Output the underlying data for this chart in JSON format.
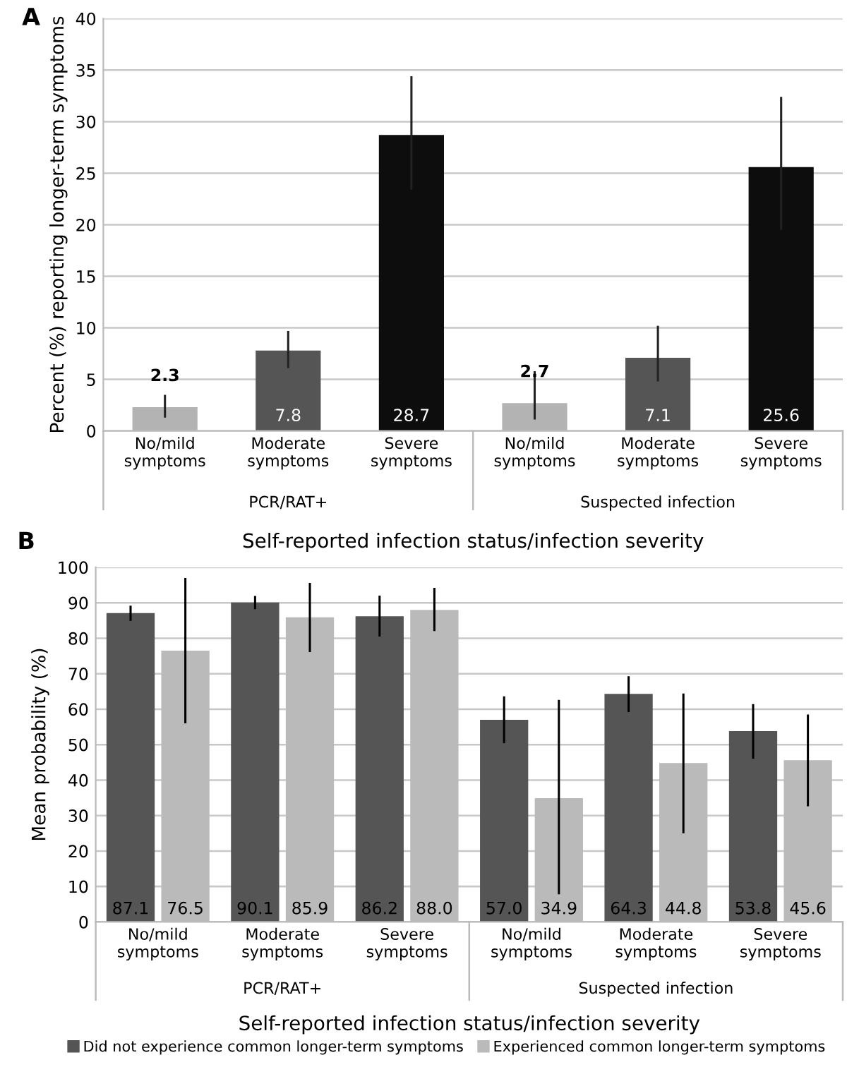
{
  "chart_data": [
    {
      "type": "bar",
      "xlabel": "Self-reported infection status/infection severity",
      "ylabel": "Percent (%) reporting longer-term symptoms",
      "categories": [
        "No/mild symptoms",
        "Moderate symptoms",
        "Severe symptoms",
        "No/mild symptoms",
        "Moderate symptoms",
        "Severe symptoms"
      ],
      "values": [
        2.3,
        7.8,
        28.7,
        2.7,
        7.1,
        25.6
      ],
      "colors": [
        "#b3b3b3",
        "#555555",
        "#0d0d0d",
        "#b3b3b3",
        "#555555",
        "#0d0d0d"
      ],
      "errors": [
        [
          1.3,
          3.5
        ],
        [
          6.1,
          9.7
        ],
        [
          23.4,
          34.4
        ],
        [
          1.1,
          5.8
        ],
        [
          4.8,
          10.2
        ],
        [
          19.5,
          32.4
        ]
      ],
      "data_labels": true,
      "ylim": [
        0,
        40
      ],
      "yticks": [
        0,
        5,
        10,
        15,
        20,
        25,
        30,
        35,
        40
      ],
      "grid": "y",
      "annotations": [
        "A",
        "PCR/RAT+",
        "Suspected infection"
      ]
    },
    {
      "type": "bar",
      "xlabel": "Self-reported infection status/infection severity",
      "ylabel": "Mean probability (%)",
      "categories": [
        "No/mild symptoms",
        "Moderate symptoms",
        "Severe symptoms",
        "No/mild symptoms",
        "Moderate symptoms",
        "Severe symptoms"
      ],
      "series": [
        {
          "name": "Did not experience common longer-term symptoms",
          "color": "#555555",
          "values": [
            87.1,
            90.1,
            86.2,
            57.0,
            64.3,
            53.8
          ],
          "value_labels": [
            "87.1",
            "90.1",
            "86.2",
            "57.0",
            "64.3",
            "53.8"
          ],
          "errors": [
            [
              84.9,
              89.2
            ],
            [
              88.2,
              91.9
            ],
            [
              80.5,
              92.0
            ],
            [
              50.4,
              63.6
            ],
            [
              59.2,
              69.3
            ],
            [
              46.0,
              61.4
            ]
          ]
        },
        {
          "name": "Experienced common longer-term symptoms",
          "color": "#bababa",
          "values": [
            76.5,
            85.9,
            88.0,
            34.9,
            44.8,
            45.6
          ],
          "value_labels": [
            "76.5",
            "85.9",
            "88.0",
            "34.9",
            "44.8",
            "45.6"
          ],
          "errors": [
            [
              56.0,
              97.0
            ],
            [
              76.1,
              95.6
            ],
            [
              82.0,
              94.2
            ],
            [
              7.8,
              62.6
            ],
            [
              25.0,
              64.4
            ],
            [
              32.6,
              58.5
            ]
          ]
        }
      ],
      "ylim": [
        0,
        100
      ],
      "yticks": [
        0,
        10,
        20,
        30,
        40,
        50,
        60,
        70,
        80,
        90,
        100
      ],
      "grid": "y",
      "legend": "bottom",
      "annotations": [
        "B",
        "PCR/RAT+",
        "Suspected infection"
      ]
    }
  ]
}
